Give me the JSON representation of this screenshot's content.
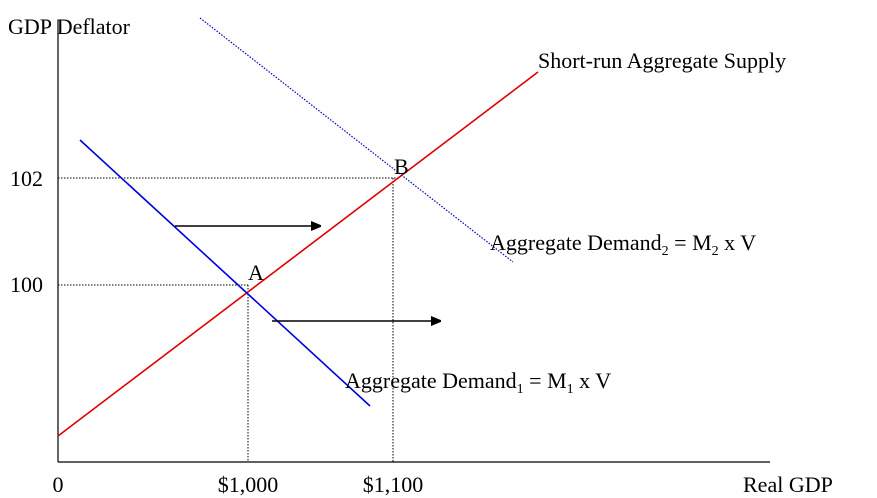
{
  "axis_labels": {
    "y": "GDP Deflator",
    "x": "Real GDP"
  },
  "y_labels": [
    "102",
    "100"
  ],
  "x_labels": [
    "0",
    "$1,000",
    "$1,100"
  ],
  "points": [
    "A",
    "B"
  ],
  "curves": {
    "supply": "Short-run Aggregate Supply",
    "demand_2": [
      "Aggregate Demand",
      "2",
      " = M",
      "2",
      " x V"
    ],
    "demand_1": [
      "Aggregate Demand",
      "1",
      " = M",
      "1",
      " x V"
    ]
  }
}
